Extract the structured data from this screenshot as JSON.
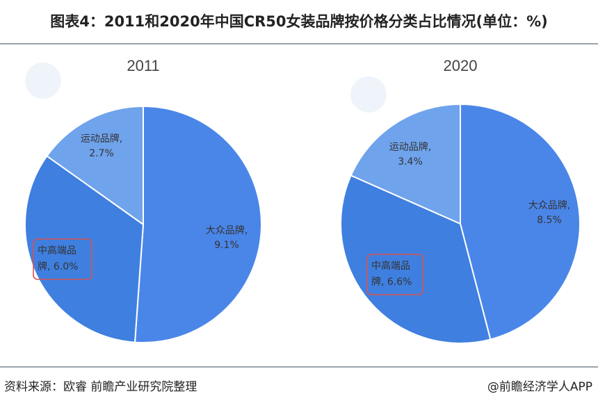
{
  "title": "图表4：2011和2020年中国CR50女装品牌按价格分类占比情况(单位：%)",
  "chart_data": [
    {
      "type": "pie",
      "title": "2011",
      "unit": "%",
      "slices": [
        {
          "label": "大众品牌,",
          "value": 9.1,
          "value_text": "9.1%",
          "color": "#4a86e8"
        },
        {
          "label": "中高端品牌,",
          "value": 6.0,
          "value_text": "6.0%",
          "color": "#3f7fe0"
        },
        {
          "label": "运动品牌,",
          "value": 2.7,
          "value_text": "2.7%",
          "color": "#6fa3ec"
        }
      ],
      "highlighted_slice": "中高端品牌,"
    },
    {
      "type": "pie",
      "title": "2020",
      "unit": "%",
      "slices": [
        {
          "label": "大众品牌,",
          "value": 8.5,
          "value_text": "8.5%",
          "color": "#4a86e8"
        },
        {
          "label": "中高端品牌,",
          "value": 6.6,
          "value_text": "6.6%",
          "color": "#3f7fe0"
        },
        {
          "label": "运动品牌,",
          "value": 3.4,
          "value_text": "3.4%",
          "color": "#6fa3ec"
        }
      ],
      "highlighted_slice": "中高端品牌,"
    }
  ],
  "highlight_color": "#d9534f",
  "source": "资料来源：欧睿 前瞻产业研究院整理",
  "credit": "@前瞻经济学人APP",
  "watermark": "前瞻产业研究院"
}
